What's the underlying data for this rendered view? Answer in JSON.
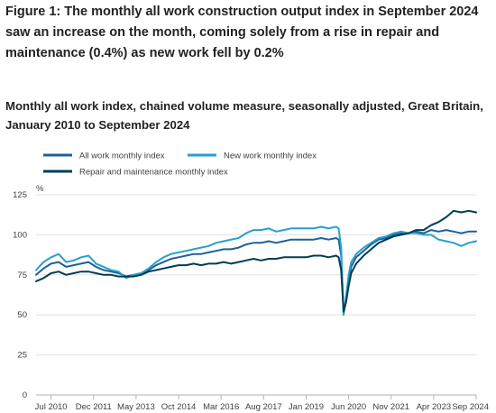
{
  "header": {
    "title": "Figure 1: The monthly all work construction output index in September 2024 saw an increase on the month, coming solely from a rise in repair and maintenance (0.4%) as new work fell by 0.2%",
    "subtitle": "Monthly all work index, chained volume measure, seasonally adjusted, Great Britain, January 2010 to September 2024"
  },
  "chart_data": {
    "type": "line",
    "title": "Figure 1: The monthly all work construction output index in September 2024 saw an increase on the month, coming solely from a rise in repair and maintenance (0.4%) as new work fell by 0.2%",
    "subtitle": "Monthly all work index, chained volume measure, seasonally adjusted, Great Britain, January 2010 to September 2024",
    "ylabel": "%",
    "ylim": [
      0,
      125
    ],
    "yticks": [
      0,
      25,
      50,
      75,
      100,
      125
    ],
    "xlim": [
      "2010-01",
      "2024-09"
    ],
    "xticks": [
      {
        "label": "Jul 2010",
        "date": "2010-07"
      },
      {
        "label": "Dec 2011",
        "date": "2011-12"
      },
      {
        "label": "May 2013",
        "date": "2013-05"
      },
      {
        "label": "Oct 2014",
        "date": "2014-10"
      },
      {
        "label": "Mar 2016",
        "date": "2016-03"
      },
      {
        "label": "Aug 2017",
        "date": "2017-08"
      },
      {
        "label": "Jan 2019",
        "date": "2019-01"
      },
      {
        "label": "Jun 2020",
        "date": "2020-06"
      },
      {
        "label": "Nov 2021",
        "date": "2021-11"
      },
      {
        "label": "Apr 2023",
        "date": "2023-04"
      },
      {
        "label": "Sep 2024",
        "date": "2024-09"
      }
    ],
    "grid": true,
    "legend_position": "top-left",
    "series": [
      {
        "name": "All work monthly index",
        "color": "#206095",
        "points": [
          [
            "2010-01",
            75
          ],
          [
            "2010-04",
            79
          ],
          [
            "2010-07",
            82
          ],
          [
            "2010-10",
            83
          ],
          [
            "2011-01",
            80
          ],
          [
            "2011-04",
            81
          ],
          [
            "2011-07",
            82
          ],
          [
            "2011-10",
            83
          ],
          [
            "2012-01",
            80
          ],
          [
            "2012-04",
            78
          ],
          [
            "2012-07",
            77
          ],
          [
            "2012-10",
            76
          ],
          [
            "2013-01",
            74
          ],
          [
            "2013-04",
            75
          ],
          [
            "2013-07",
            76
          ],
          [
            "2013-10",
            78
          ],
          [
            "2014-01",
            81
          ],
          [
            "2014-04",
            83
          ],
          [
            "2014-07",
            85
          ],
          [
            "2014-10",
            86
          ],
          [
            "2015-01",
            87
          ],
          [
            "2015-04",
            88
          ],
          [
            "2015-07",
            88
          ],
          [
            "2015-10",
            89
          ],
          [
            "2016-01",
            90
          ],
          [
            "2016-04",
            91
          ],
          [
            "2016-07",
            91
          ],
          [
            "2016-10",
            92
          ],
          [
            "2017-01",
            94
          ],
          [
            "2017-04",
            95
          ],
          [
            "2017-07",
            95
          ],
          [
            "2017-10",
            96
          ],
          [
            "2018-01",
            95
          ],
          [
            "2018-04",
            96
          ],
          [
            "2018-07",
            97
          ],
          [
            "2018-10",
            97
          ],
          [
            "2019-01",
            97
          ],
          [
            "2019-04",
            97
          ],
          [
            "2019-07",
            98
          ],
          [
            "2019-10",
            97
          ],
          [
            "2020-01",
            98
          ],
          [
            "2020-02",
            97
          ],
          [
            "2020-03",
            87
          ],
          [
            "2020-04",
            51
          ],
          [
            "2020-05",
            60
          ],
          [
            "2020-06",
            72
          ],
          [
            "2020-07",
            80
          ],
          [
            "2020-09",
            86
          ],
          [
            "2020-12",
            90
          ],
          [
            "2021-03",
            94
          ],
          [
            "2021-06",
            97
          ],
          [
            "2021-09",
            98
          ],
          [
            "2021-12",
            100
          ],
          [
            "2022-03",
            101
          ],
          [
            "2022-06",
            101
          ],
          [
            "2022-09",
            102
          ],
          [
            "2022-12",
            101
          ],
          [
            "2023-03",
            103
          ],
          [
            "2023-06",
            102
          ],
          [
            "2023-09",
            103
          ],
          [
            "2023-12",
            102
          ],
          [
            "2024-03",
            101
          ],
          [
            "2024-06",
            102
          ],
          [
            "2024-09",
            102
          ]
        ]
      },
      {
        "name": "New work monthly index",
        "color": "#27a0cc",
        "points": [
          [
            "2010-01",
            78
          ],
          [
            "2010-04",
            83
          ],
          [
            "2010-07",
            86
          ],
          [
            "2010-10",
            88
          ],
          [
            "2011-01",
            83
          ],
          [
            "2011-04",
            84
          ],
          [
            "2011-07",
            86
          ],
          [
            "2011-10",
            87
          ],
          [
            "2012-01",
            82
          ],
          [
            "2012-04",
            80
          ],
          [
            "2012-07",
            78
          ],
          [
            "2012-10",
            77
          ],
          [
            "2013-01",
            73
          ],
          [
            "2013-04",
            75
          ],
          [
            "2013-07",
            76
          ],
          [
            "2013-10",
            79
          ],
          [
            "2014-01",
            83
          ],
          [
            "2014-04",
            86
          ],
          [
            "2014-07",
            88
          ],
          [
            "2014-10",
            89
          ],
          [
            "2015-01",
            90
          ],
          [
            "2015-04",
            91
          ],
          [
            "2015-07",
            92
          ],
          [
            "2015-10",
            93
          ],
          [
            "2016-01",
            95
          ],
          [
            "2016-04",
            96
          ],
          [
            "2016-07",
            97
          ],
          [
            "2016-10",
            98
          ],
          [
            "2017-01",
            101
          ],
          [
            "2017-04",
            103
          ],
          [
            "2017-07",
            103
          ],
          [
            "2017-10",
            104
          ],
          [
            "2018-01",
            102
          ],
          [
            "2018-04",
            103
          ],
          [
            "2018-07",
            104
          ],
          [
            "2018-10",
            104
          ],
          [
            "2019-01",
            104
          ],
          [
            "2019-04",
            104
          ],
          [
            "2019-07",
            105
          ],
          [
            "2019-10",
            104
          ],
          [
            "2020-01",
            105
          ],
          [
            "2020-02",
            104
          ],
          [
            "2020-03",
            92
          ],
          [
            "2020-04",
            50
          ],
          [
            "2020-05",
            62
          ],
          [
            "2020-06",
            75
          ],
          [
            "2020-07",
            83
          ],
          [
            "2020-09",
            88
          ],
          [
            "2020-12",
            92
          ],
          [
            "2021-03",
            95
          ],
          [
            "2021-06",
            98
          ],
          [
            "2021-09",
            99
          ],
          [
            "2021-12",
            101
          ],
          [
            "2022-03",
            102
          ],
          [
            "2022-06",
            101
          ],
          [
            "2022-09",
            101
          ],
          [
            "2022-12",
            100
          ],
          [
            "2023-03",
            100
          ],
          [
            "2023-06",
            97
          ],
          [
            "2023-09",
            96
          ],
          [
            "2023-12",
            95
          ],
          [
            "2024-03",
            93
          ],
          [
            "2024-06",
            95
          ],
          [
            "2024-09",
            96
          ]
        ]
      },
      {
        "name": "Repair and maintenance monthly index",
        "color": "#003c57",
        "points": [
          [
            "2010-01",
            71
          ],
          [
            "2010-04",
            73
          ],
          [
            "2010-07",
            76
          ],
          [
            "2010-10",
            77
          ],
          [
            "2011-01",
            75
          ],
          [
            "2011-04",
            76
          ],
          [
            "2011-07",
            77
          ],
          [
            "2011-10",
            77
          ],
          [
            "2012-01",
            76
          ],
          [
            "2012-04",
            75
          ],
          [
            "2012-07",
            75
          ],
          [
            "2012-10",
            74
          ],
          [
            "2013-01",
            74
          ],
          [
            "2013-04",
            74
          ],
          [
            "2013-07",
            75
          ],
          [
            "2013-10",
            77
          ],
          [
            "2014-01",
            78
          ],
          [
            "2014-04",
            79
          ],
          [
            "2014-07",
            80
          ],
          [
            "2014-10",
            81
          ],
          [
            "2015-01",
            81
          ],
          [
            "2015-04",
            82
          ],
          [
            "2015-07",
            81
          ],
          [
            "2015-10",
            82
          ],
          [
            "2016-01",
            82
          ],
          [
            "2016-04",
            83
          ],
          [
            "2016-07",
            82
          ],
          [
            "2016-10",
            83
          ],
          [
            "2017-01",
            84
          ],
          [
            "2017-04",
            85
          ],
          [
            "2017-07",
            84
          ],
          [
            "2017-10",
            85
          ],
          [
            "2018-01",
            85
          ],
          [
            "2018-04",
            86
          ],
          [
            "2018-07",
            86
          ],
          [
            "2018-10",
            86
          ],
          [
            "2019-01",
            86
          ],
          [
            "2019-04",
            87
          ],
          [
            "2019-07",
            87
          ],
          [
            "2019-10",
            86
          ],
          [
            "2020-01",
            87
          ],
          [
            "2020-02",
            86
          ],
          [
            "2020-03",
            78
          ],
          [
            "2020-04",
            52
          ],
          [
            "2020-05",
            58
          ],
          [
            "2020-06",
            68
          ],
          [
            "2020-07",
            76
          ],
          [
            "2020-09",
            82
          ],
          [
            "2020-12",
            87
          ],
          [
            "2021-03",
            91
          ],
          [
            "2021-06",
            95
          ],
          [
            "2021-09",
            97
          ],
          [
            "2021-12",
            99
          ],
          [
            "2022-03",
            100
          ],
          [
            "2022-06",
            101
          ],
          [
            "2022-09",
            103
          ],
          [
            "2022-12",
            103
          ],
          [
            "2023-03",
            106
          ],
          [
            "2023-06",
            108
          ],
          [
            "2023-09",
            111
          ],
          [
            "2023-12",
            115
          ],
          [
            "2024-03",
            114
          ],
          [
            "2024-06",
            115
          ],
          [
            "2024-09",
            114
          ]
        ]
      }
    ]
  }
}
